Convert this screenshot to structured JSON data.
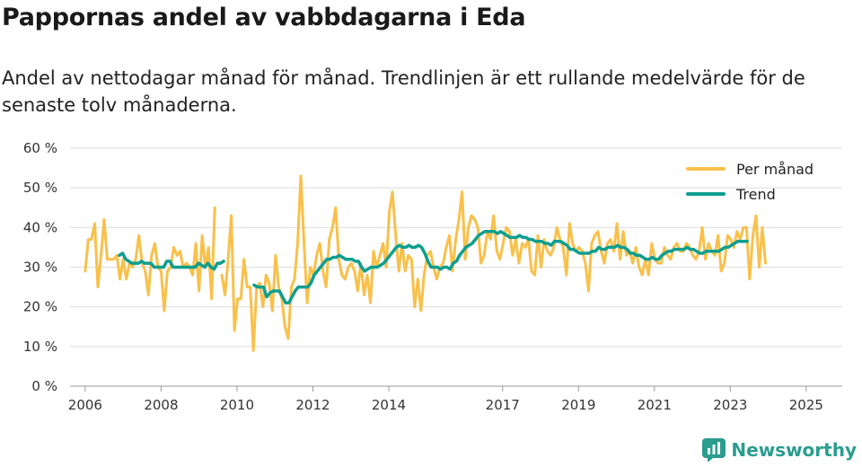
{
  "title": "Pappornas andel av vabbdagarna i Eda",
  "subtitle": "Andel av nettodagar månad för månad. Trendlinjen är ett rullande medelvärde för de senaste tolv månaderna.",
  "brand": "Newsworthy",
  "colors": {
    "monthly": "#f9c04a",
    "trend": "#0f9e8e",
    "grid": "#dddddd",
    "brand": "#2a9d8f"
  },
  "chart_data": {
    "type": "line",
    "title": "Pappornas andel av vabbdagarna i Eda",
    "xlabel": "",
    "ylabel": "",
    "ylim": [
      0,
      60
    ],
    "xlim": [
      2005.6,
      2025.95
    ],
    "y_ticks": [
      0,
      10,
      20,
      30,
      40,
      50,
      60
    ],
    "y_tick_labels": [
      "0 %",
      "10 %",
      "20 %",
      "30 %",
      "40 %",
      "50 %",
      "60 %"
    ],
    "x_ticks": [
      2006,
      2008,
      2010,
      2012,
      2014,
      2017,
      2019,
      2021,
      2023,
      2025
    ],
    "x_tick_labels": [
      "2006",
      "2008",
      "2010",
      "2012",
      "2014",
      "2017",
      "2019",
      "2021",
      "2023",
      "2025"
    ],
    "grid": true,
    "legend_position": "top-right",
    "series": [
      {
        "name": "Per månad",
        "color": "#f9c04a",
        "segments": [
          {
            "start": 2006.0,
            "step": 0.0833,
            "values": [
              29,
              37,
              37,
              41,
              25,
              33,
              42,
              32,
              32,
              32,
              33,
              27,
              32,
              27,
              31,
              30,
              32,
              38,
              31,
              29,
              23,
              33,
              36,
              30,
              29,
              19,
              29,
              30,
              35,
              33,
              34,
              30,
              31,
              30,
              28,
              36,
              24,
              38,
              30,
              35,
              22,
              45
            ]
          },
          {
            "start": 2009.6,
            "step": 0.0833,
            "values": [
              28,
              23,
              32,
              43,
              14,
              22,
              22,
              32,
              25,
              25,
              9,
              25,
              26,
              20,
              28,
              26,
              19,
              33,
              25,
              22,
              15,
              12,
              25,
              27,
              36,
              53,
              36,
              21,
              30,
              28,
              33,
              36,
              29,
              25,
              37,
              40,
              45,
              32,
              28,
              27,
              30,
              31,
              29,
              24,
              31,
              23,
              28,
              21,
              34,
              30,
              33,
              36,
              30,
              44,
              49,
              38,
              29,
              36,
              29,
              33,
              32,
              20,
              27,
              19,
              28,
              33,
              34,
              30,
              27,
              30,
              31,
              35,
              38,
              29,
              37,
              42,
              49,
              32,
              40,
              43,
              42,
              40,
              31,
              33,
              39,
              37,
              43,
              34,
              32,
              36,
              40,
              39,
              33,
              37,
              31,
              36,
              35,
              37,
              29,
              28,
              38,
              30,
              37,
              34,
              33,
              35,
              40,
              37,
              35,
              28,
              41,
              36,
              34,
              35,
              34,
              31,
              24,
              36,
              38,
              39,
              34,
              31,
              36,
              37,
              34,
              41,
              32,
              39,
              33,
              34,
              31,
              35,
              30,
              28,
              32,
              28,
              36,
              32,
              31,
              31,
              35,
              33,
              32,
              35,
              36,
              34,
              34,
              36,
              35,
              33,
              32,
              34,
              40,
              32,
              36,
              34,
              33,
              38,
              29,
              31,
              38,
              37,
              35,
              39,
              37,
              40,
              40,
              27,
              38,
              43,
              30,
              40,
              31
            ]
          }
        ]
      },
      {
        "name": "Trend",
        "color": "#0f9e8e",
        "segments": [
          {
            "start": 2006.9,
            "step": 0.0833,
            "values": [
              33,
              33.5,
              32,
              31.5,
              31,
              31,
              31,
              31.5,
              31,
              31,
              31,
              30,
              30,
              30,
              30,
              31.5,
              31.5,
              30,
              30,
              30,
              30,
              30,
              30,
              30,
              30,
              31,
              30.5,
              30,
              31,
              30,
              29.5,
              31,
              31,
              31.5
            ]
          },
          {
            "start": 2010.45,
            "step": 0.0833,
            "values": [
              25.5,
              25,
              25,
              25,
              22.5,
              23.5,
              24,
              24,
              24,
              22.5,
              21,
              21,
              22.5,
              24,
              25,
              25,
              25,
              25,
              26,
              28,
              29,
              30,
              31,
              32,
              32,
              32.5,
              32.5,
              33,
              32.5,
              32,
              32,
              32,
              31.5,
              31.5,
              30,
              29,
              29.5,
              30,
              30,
              30,
              30.5,
              31,
              32,
              33,
              34,
              35,
              35.5,
              35,
              35,
              35.5,
              35,
              35,
              35.5,
              35,
              33.5,
              31.5,
              30,
              30,
              30,
              29.5,
              30,
              30,
              29.5,
              31,
              31.5,
              33,
              34,
              35,
              35.5,
              36,
              37,
              38,
              38.5,
              39,
              39,
              39,
              39,
              38.5,
              39,
              38.5,
              38,
              37.5,
              37.5,
              37.5,
              38,
              37.5,
              37.5,
              37,
              37,
              36.5,
              36.5,
              36.5,
              36,
              36,
              35.5,
              36.5,
              36.5,
              36.5,
              36,
              35.5,
              34.5,
              34.5,
              34,
              33.5,
              33.5,
              33.5,
              33.5,
              34,
              34,
              35,
              34.5,
              34.5,
              35,
              35,
              35,
              35.5,
              35,
              35,
              34.5,
              33.5,
              33.5,
              33,
              33,
              32.5,
              32,
              32,
              32.5,
              32,
              32,
              33,
              33.5,
              34,
              34,
              34.5,
              34.5,
              34.5,
              34.5,
              35,
              34.5,
              34.5,
              34,
              33.5,
              33.5,
              34,
              34,
              34,
              34,
              34,
              34.5,
              35,
              35,
              35.5,
              36,
              36.5,
              36.5,
              36.5,
              36.5
            ]
          }
        ]
      }
    ]
  }
}
